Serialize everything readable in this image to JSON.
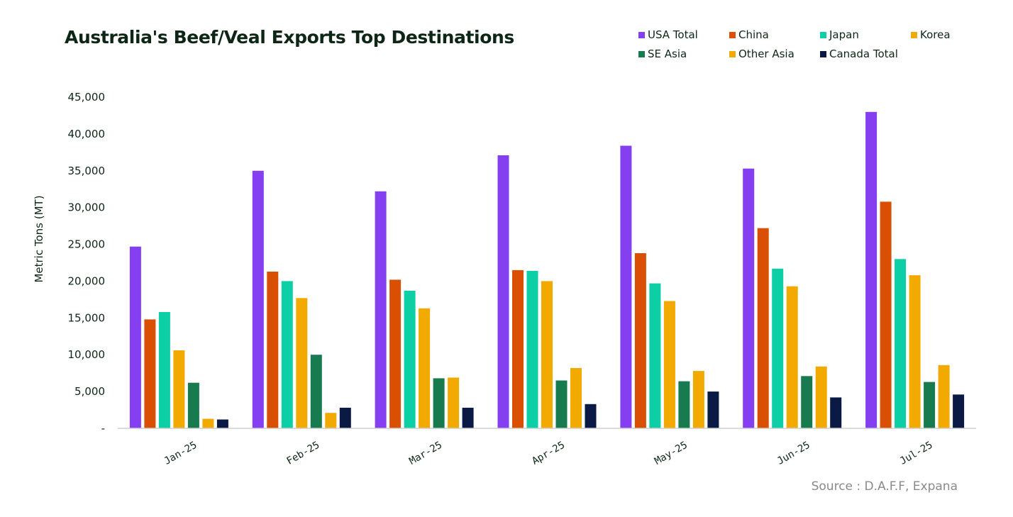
{
  "chart_data": {
    "type": "bar",
    "title": "Australia's Beef/Veal Exports Top Destinations",
    "ylabel": "Metric Tons (MT)",
    "xlabel": "",
    "ylim": [
      0,
      45000
    ],
    "yticks": [
      0,
      5000,
      10000,
      15000,
      20000,
      25000,
      30000,
      35000,
      40000,
      45000
    ],
    "ytick_labels": [
      "-",
      "5,000",
      "10,000",
      "15,000",
      "20,000",
      "25,000",
      "30,000",
      "35,000",
      "40,000",
      "45,000"
    ],
    "grid": false,
    "legend_position": "top-right",
    "categories": [
      "Jan-25",
      "Feb-25",
      "Mar-25",
      "Apr-25",
      "May-25",
      "Jun-25",
      "Jul-25"
    ],
    "series": [
      {
        "name": "USA Total",
        "color": "#8440f0",
        "values": [
          24700,
          35000,
          32200,
          37100,
          38400,
          35300,
          43000
        ]
      },
      {
        "name": "China",
        "color": "#d94f04",
        "values": [
          14800,
          21300,
          20200,
          21500,
          23800,
          27200,
          30800
        ]
      },
      {
        "name": "Japan",
        "color": "#0ccfa6",
        "values": [
          15800,
          20000,
          18700,
          21400,
          19700,
          21700,
          23000
        ]
      },
      {
        "name": "Korea",
        "color": "#f2a900",
        "values": [
          10600,
          17700,
          16300,
          20000,
          17300,
          19300,
          20800
        ]
      },
      {
        "name": "SE Asia",
        "color": "#177b4f",
        "values": [
          6200,
          10000,
          6800,
          6500,
          6400,
          7100,
          6300
        ]
      },
      {
        "name": "Other Asia",
        "color": "#f2a900",
        "values": [
          1300,
          2100,
          6900,
          8200,
          7800,
          8400,
          8600
        ]
      },
      {
        "name": "Canada Total",
        "color": "#0b1a45",
        "values": [
          1200,
          2800,
          2800,
          3300,
          5000,
          4200,
          4600
        ]
      }
    ],
    "source": "Source : D.A.F.F, Expana"
  }
}
